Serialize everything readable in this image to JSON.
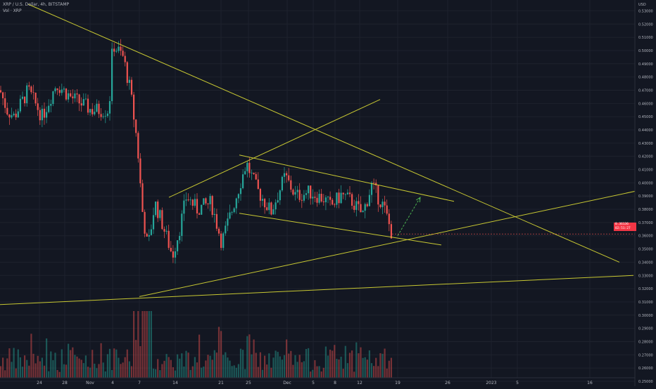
{
  "header": {
    "title": "XRP / U.S. Dollar, 4h, BITSTAMP",
    "volume": "Vol · XRP"
  },
  "price_axis": {
    "currency": "USD",
    "ticks": [
      "0.53000",
      "0.52000",
      "0.51000",
      "0.50000",
      "0.49000",
      "0.48000",
      "0.47000",
      "0.46000",
      "0.45000",
      "0.44000",
      "0.43000",
      "0.42000",
      "0.41000",
      "0.40000",
      "0.39000",
      "0.38000",
      "0.37000",
      "0.36000",
      "0.35000",
      "0.34000",
      "0.33000",
      "0.32000",
      "0.31000",
      "0.30000",
      "0.29000",
      "0.28000",
      "0.27000",
      "0.26000",
      "0.25000"
    ]
  },
  "time_axis": {
    "ticks": [
      "24",
      "28",
      "Nov",
      "4",
      "7",
      "14",
      "21",
      "25",
      "Dec",
      "5",
      "8",
      "12",
      "19",
      "26",
      "2023",
      "5",
      "16"
    ]
  },
  "price_tag": {
    "symbol": "XRPUSD",
    "price": "0.36136",
    "countdown": "02:51:27"
  },
  "colors": {
    "background": "#131722",
    "up": "#26a69a",
    "down": "#ef5350",
    "trendline": "#c8c832",
    "arrow": "#4caf50"
  },
  "chart_data": {
    "type": "candlestick",
    "symbol": "XRP / U.S. Dollar",
    "interval": "4h",
    "exchange": "BITSTAMP",
    "y_range": [
      0.25,
      0.535
    ],
    "last_price": 0.36136,
    "price_path_keypoints": [
      {
        "t": 0,
        "p": 0.47
      },
      {
        "t": 10,
        "p": 0.455
      },
      {
        "t": 20,
        "p": 0.45
      },
      {
        "t": 40,
        "p": 0.47
      },
      {
        "t": 60,
        "p": 0.45
      },
      {
        "t": 80,
        "p": 0.475
      },
      {
        "t": 100,
        "p": 0.465
      },
      {
        "t": 130,
        "p": 0.455
      },
      {
        "t": 155,
        "p": 0.455
      },
      {
        "t": 160,
        "p": 0.505
      },
      {
        "t": 175,
        "p": 0.495
      },
      {
        "t": 185,
        "p": 0.47
      },
      {
        "t": 195,
        "p": 0.43
      },
      {
        "t": 202,
        "p": 0.38
      },
      {
        "t": 210,
        "p": 0.35
      },
      {
        "t": 220,
        "p": 0.385
      },
      {
        "t": 230,
        "p": 0.37
      },
      {
        "t": 245,
        "p": 0.345
      },
      {
        "t": 255,
        "p": 0.365
      },
      {
        "t": 265,
        "p": 0.39
      },
      {
        "t": 280,
        "p": 0.38
      },
      {
        "t": 300,
        "p": 0.385
      },
      {
        "t": 315,
        "p": 0.355
      },
      {
        "t": 330,
        "p": 0.38
      },
      {
        "t": 350,
        "p": 0.415
      },
      {
        "t": 365,
        "p": 0.395
      },
      {
        "t": 385,
        "p": 0.378
      },
      {
        "t": 405,
        "p": 0.405
      },
      {
        "t": 420,
        "p": 0.39
      },
      {
        "t": 440,
        "p": 0.393
      },
      {
        "t": 460,
        "p": 0.388
      },
      {
        "t": 470,
        "p": 0.382
      },
      {
        "t": 485,
        "p": 0.391
      },
      {
        "t": 500,
        "p": 0.386
      },
      {
        "t": 515,
        "p": 0.376
      },
      {
        "t": 528,
        "p": 0.398
      },
      {
        "t": 545,
        "p": 0.382
      },
      {
        "t": 557,
        "p": 0.361
      }
    ],
    "trendlines": [
      {
        "from": {
          "t": 40,
          "p": 0.535
        },
        "to": {
          "t": 880,
          "p": 0.34
        }
      },
      {
        "from": {
          "t": 240,
          "p": 0.389
        },
        "to": {
          "t": 540,
          "p": 0.463
        }
      },
      {
        "from": {
          "t": 340,
          "p": 0.421
        },
        "to": {
          "t": 645,
          "p": 0.386
        }
      },
      {
        "from": {
          "t": 340,
          "p": 0.377
        },
        "to": {
          "t": 627,
          "p": 0.353
        }
      },
      {
        "from": {
          "t": 198,
          "p": 0.314
        },
        "to": {
          "t": 932,
          "p": 0.397
        }
      },
      {
        "from": {
          "t": 0,
          "p": 0.308
        },
        "to": {
          "t": 900,
          "p": 0.33
        }
      }
    ],
    "projection_arrow": {
      "from": {
        "t": 565,
        "p": 0.36
      },
      "to": {
        "t": 597,
        "p": 0.389
      }
    }
  }
}
